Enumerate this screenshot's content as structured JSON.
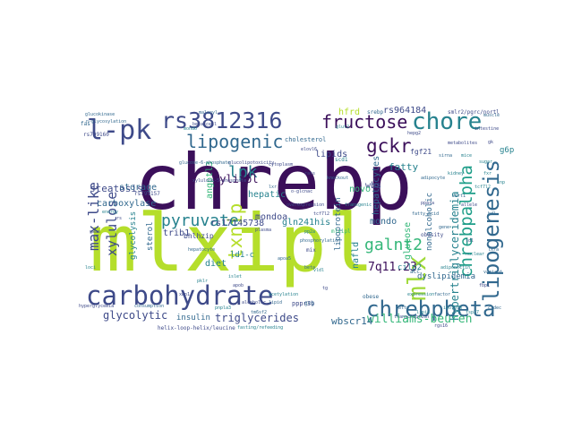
{
  "wordcloud": {
    "words": [
      {
        "text": "chrebp",
        "color": "#3b0f5a"
      },
      {
        "text": "mlxipl",
        "color": "#b5de2b"
      },
      {
        "text": "rs3812316",
        "color": "#3e4a89"
      },
      {
        "text": "carbohydrate",
        "color": "#3e4a89"
      },
      {
        "text": "lipogenesis",
        "color": "#31688e"
      },
      {
        "text": "chore",
        "color": "#26828e"
      },
      {
        "text": "fructose",
        "color": "#3b0f5a"
      },
      {
        "text": "l-pk",
        "color": "#3e4a89"
      },
      {
        "text": "lipogenic",
        "color": "#31688e"
      },
      {
        "text": "chrebpbeta",
        "color": "#31688e"
      },
      {
        "text": "mlx",
        "color": "#a0da39"
      },
      {
        "text": "chrebpalpha",
        "color": "#1f9e89"
      },
      {
        "text": "max-like",
        "color": "#3e4a89"
      },
      {
        "text": "gckr",
        "color": "#3b0f5a"
      },
      {
        "text": "txnip",
        "color": "#b5de2b"
      },
      {
        "text": "pyruvate",
        "color": "#26828e"
      },
      {
        "text": "galnt2",
        "color": "#35b779"
      },
      {
        "text": "lpk",
        "color": "#26828e"
      },
      {
        "text": "xylulose",
        "color": "#3e4a89"
      },
      {
        "text": "williams-beuren",
        "color": "#35b779"
      },
      {
        "text": "triglycerides",
        "color": "#3e4a89"
      },
      {
        "text": "glycolytic",
        "color": "#3e4a89"
      },
      {
        "text": "7q11.23",
        "color": "#3b0f5a"
      },
      {
        "text": "wbscr14",
        "color": "#31688e"
      },
      {
        "text": "hypertriglyceridemia",
        "color": "#26828e"
      },
      {
        "text": "hepatocytes",
        "color": "#31688e"
      },
      {
        "text": "rs964184",
        "color": "#3e4a89"
      },
      {
        "text": "steatosis",
        "color": "#3e4a89"
      },
      {
        "text": "carboxylase",
        "color": "#31688e"
      },
      {
        "text": "fatty",
        "color": "#26828e"
      },
      {
        "text": "g6p",
        "color": "#26828e"
      },
      {
        "text": "angptl3",
        "color": "#35b779"
      },
      {
        "text": "storage",
        "color": "#31688e"
      },
      {
        "text": "xylitol",
        "color": "#3b0f5a"
      },
      {
        "text": "hepatic",
        "color": "#26828e"
      },
      {
        "text": "rs17145738",
        "color": "#3e4a89"
      },
      {
        "text": "gln241his",
        "color": "#26828e"
      },
      {
        "text": "mondoa",
        "color": "#3e4a89"
      },
      {
        "text": "mondo",
        "color": "#31688e"
      },
      {
        "text": "nafld",
        "color": "#26828e"
      },
      {
        "text": "glucose",
        "color": "#35b779"
      },
      {
        "text": "nonalcoholic",
        "color": "#31688e"
      },
      {
        "text": "wbs",
        "color": "#3e4a89"
      },
      {
        "text": "novo",
        "color": "#35b779"
      },
      {
        "text": "lipids",
        "color": "#3e4a89"
      },
      {
        "text": "hfrd",
        "color": "#b5de2b"
      },
      {
        "text": "cilp2",
        "color": "#26828e"
      },
      {
        "text": "trib1",
        "color": "#3e4a89"
      },
      {
        "text": "diet",
        "color": "#26828e"
      },
      {
        "text": "ld1-c",
        "color": "#26828e"
      },
      {
        "text": "insulin",
        "color": "#31688e"
      },
      {
        "text": "lipoprotein",
        "color": "#31688e"
      },
      {
        "text": "glycolysis",
        "color": "#26828e"
      },
      {
        "text": "sterol",
        "color": "#31688e"
      },
      {
        "text": "bhlhzip",
        "color": "#3e4a89"
      },
      {
        "text": "dyslipidemia",
        "color": "#31688e"
      },
      {
        "text": "fgf21",
        "color": "#3e4a89"
      },
      {
        "text": "pppr3b",
        "color": "#3e4a89"
      },
      {
        "text": "cholesterol",
        "color": "#31688e"
      },
      {
        "text": "rs799160",
        "color": "#3e4a89"
      },
      {
        "text": "rs799157",
        "color": "#3e4a89"
      },
      {
        "text": "mlxipl",
        "color": "#35b779"
      },
      {
        "text": "acc",
        "color": "#31688e"
      },
      {
        "text": "fas",
        "color": "#31688e"
      },
      {
        "text": "scd1",
        "color": "#26828e"
      },
      {
        "text": "gcg",
        "color": "#31688e"
      },
      {
        "text": "hepg2",
        "color": "#3e4a89"
      },
      {
        "text": "srebp",
        "color": "#31688e"
      },
      {
        "text": "mix",
        "color": "#3e4a89"
      },
      {
        "text": "glut2",
        "color": "#26828e"
      },
      {
        "text": "obese",
        "color": "#31688e"
      },
      {
        "text": "helix-loop-helix/leucine",
        "color": "#3e4a89"
      },
      {
        "text": "fasting/refeeding",
        "color": "#26828e"
      },
      {
        "text": "obesity",
        "color": "#3e4a89"
      },
      {
        "text": "consumption",
        "color": "#31688e"
      },
      {
        "text": "hyperglycemia",
        "color": "#3e4a89"
      },
      {
        "text": "energy",
        "color": "#26828e"
      },
      {
        "text": "metabolites",
        "color": "#3e4a89"
      },
      {
        "text": "glucokinase",
        "color": "#31688e"
      },
      {
        "text": "pklr",
        "color": "#26828e"
      },
      {
        "text": "xbp1",
        "color": "#3e4a89"
      },
      {
        "text": "sirt1",
        "color": "#31688e"
      },
      {
        "text": "mondo",
        "color": "#26828e"
      },
      {
        "text": "ppara",
        "color": "#3e4a89"
      },
      {
        "text": "sugar",
        "color": "#26828e"
      },
      {
        "text": "malonyl",
        "color": "#31688e"
      },
      {
        "text": "smlr2/pgrc/nortl",
        "color": "#3e4a89"
      },
      {
        "text": "n-glycosylation",
        "color": "#31688e"
      },
      {
        "text": "elovl6",
        "color": "#3e4a89"
      },
      {
        "text": "lipid",
        "color": "#31688e"
      },
      {
        "text": "adiponectin",
        "color": "#26828e"
      },
      {
        "text": "glucolipotoxicity",
        "color": "#3e4a89"
      },
      {
        "text": "tg",
        "color": "#3e4a89"
      },
      {
        "text": "vldl",
        "color": "#26828e"
      },
      {
        "text": "fatty-acid",
        "color": "#31688e"
      },
      {
        "text": "alcoholic",
        "color": "#3e4a89"
      },
      {
        "text": "beta",
        "color": "#31688e"
      },
      {
        "text": "isoform",
        "color": "#26828e"
      },
      {
        "text": "plasma",
        "color": "#3e4a89"
      },
      {
        "text": "glucose-6-phosphate",
        "color": "#31688e"
      },
      {
        "text": "xylulose-5-phosphate",
        "color": "#3e4a89"
      },
      {
        "text": "pp2a",
        "color": "#26828e"
      },
      {
        "text": "lxr",
        "color": "#31688e"
      },
      {
        "text": "tcf7l2",
        "color": "#3e4a89"
      },
      {
        "text": "apoa5",
        "color": "#31688e"
      },
      {
        "text": "tcf7l2",
        "color": "#26828e"
      },
      {
        "text": "ldl",
        "color": "#3e4a89"
      },
      {
        "text": "hdl",
        "color": "#31688e"
      },
      {
        "text": "gwas",
        "color": "#3e4a89"
      },
      {
        "text": "loci",
        "color": "#26828e"
      },
      {
        "text": "rs",
        "color": "#3e4a89"
      },
      {
        "text": "variant",
        "color": "#31688e"
      },
      {
        "text": "snp",
        "color": "#26828e"
      },
      {
        "text": "allele",
        "color": "#3e4a89"
      },
      {
        "text": "gene",
        "color": "#31688e"
      },
      {
        "text": "expression",
        "color": "#26828e"
      },
      {
        "text": "transcription",
        "color": "#3e4a89"
      },
      {
        "text": "factor",
        "color": "#31688e"
      },
      {
        "text": "nuclear",
        "color": "#26828e"
      },
      {
        "text": "cytoplasm",
        "color": "#3e4a89"
      },
      {
        "text": "phosphorylation",
        "color": "#31688e"
      },
      {
        "text": "acetylation",
        "color": "#26828e"
      },
      {
        "text": "o-glcnac",
        "color": "#3e4a89"
      },
      {
        "text": "hepatocyte",
        "color": "#31688e"
      },
      {
        "text": "islet",
        "color": "#26828e"
      },
      {
        "text": "beta-cell",
        "color": "#3e4a89"
      },
      {
        "text": "adipocyte",
        "color": "#31688e"
      },
      {
        "text": "kidney",
        "color": "#26828e"
      },
      {
        "text": "intestine",
        "color": "#3e4a89"
      },
      {
        "text": "muscle",
        "color": "#31688e"
      },
      {
        "text": "mice",
        "color": "#26828e"
      },
      {
        "text": "rats",
        "color": "#3e4a89"
      },
      {
        "text": "knockout",
        "color": "#31688e"
      },
      {
        "text": "transgenic",
        "color": "#26828e"
      },
      {
        "text": "overexpression",
        "color": "#3e4a89"
      },
      {
        "text": "sirna",
        "color": "#31688e"
      },
      {
        "text": "gk",
        "color": "#3e4a89"
      },
      {
        "text": "fxr",
        "color": "#26828e"
      },
      {
        "text": "lxra",
        "color": "#31688e"
      },
      {
        "text": "fbp1",
        "color": "#3e4a89"
      },
      {
        "text": "fsp27",
        "color": "#26828e"
      },
      {
        "text": "cidec",
        "color": "#31688e"
      },
      {
        "text": "rgs16",
        "color": "#3e4a89"
      },
      {
        "text": "lipin",
        "color": "#26828e"
      },
      {
        "text": "mttp",
        "color": "#31688e"
      },
      {
        "text": "apob",
        "color": "#3e4a89"
      },
      {
        "text": "pnpla3",
        "color": "#26828e"
      },
      {
        "text": "tm6sf2",
        "color": "#31688e"
      },
      {
        "text": "hsd17b13",
        "color": "#3e4a89"
      }
    ]
  }
}
